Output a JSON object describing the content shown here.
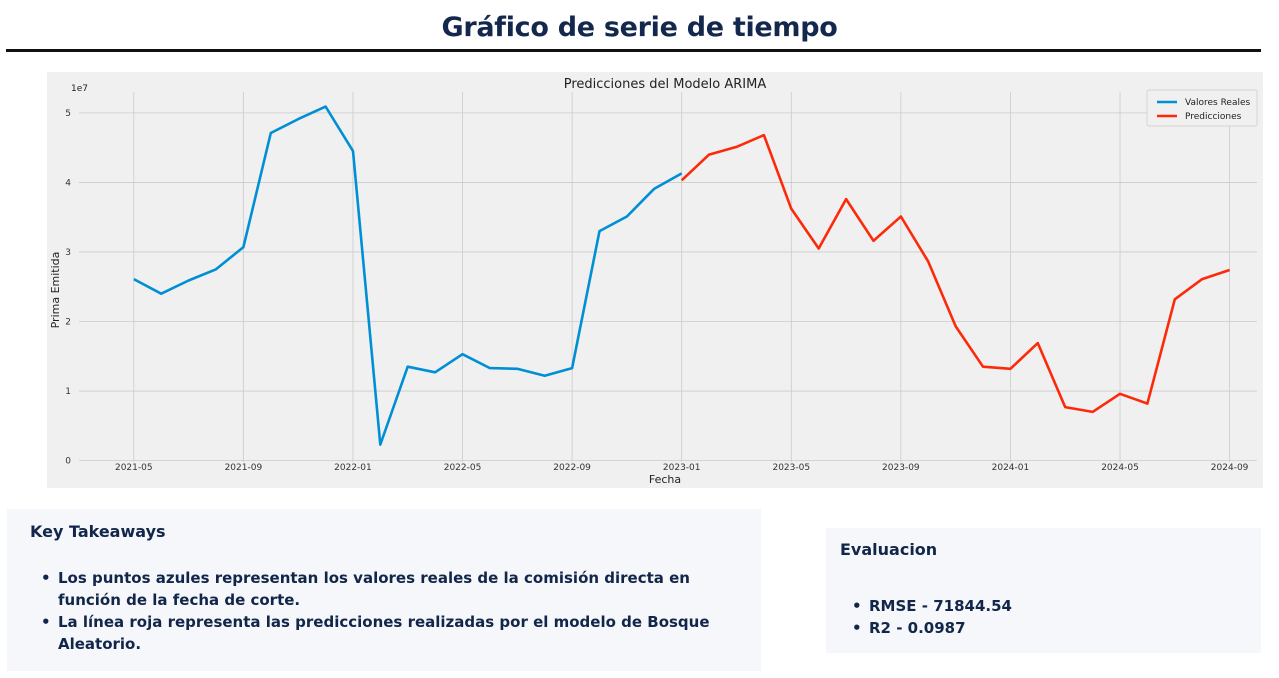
{
  "page": {
    "title": "Gráfico de serie de tiempo"
  },
  "chart_data": {
    "type": "line",
    "title": "Predicciones del Modelo ARIMA",
    "xlabel": "Fecha",
    "ylabel": "Prima Emitida",
    "y_multiplier_label": "1e7",
    "x_tick_labels": [
      "2021-05",
      "2021-09",
      "2022-01",
      "2022-05",
      "2022-09",
      "2023-01",
      "2023-05",
      "2023-09",
      "2024-01",
      "2024-05",
      "2024-09"
    ],
    "y_tick_labels": [
      "0",
      "1",
      "2",
      "3",
      "4",
      "5"
    ],
    "xlim": [
      "2021-03",
      "2024-10"
    ],
    "ylim": [
      -0.02,
      5.3
    ],
    "grid": true,
    "legend_position": "top-right",
    "series": [
      {
        "name": "Valores Reales",
        "color": "#008fd5",
        "x": [
          "2021-05",
          "2021-06",
          "2021-07",
          "2021-08",
          "2021-09",
          "2021-10",
          "2021-11",
          "2021-12",
          "2022-01",
          "2022-02",
          "2022-03",
          "2022-04",
          "2022-05",
          "2022-06",
          "2022-07",
          "2022-08",
          "2022-09",
          "2022-10",
          "2022-11",
          "2022-12",
          "2023-01"
        ],
        "y": [
          2.61,
          2.4,
          2.59,
          2.75,
          3.07,
          4.71,
          4.91,
          5.09,
          4.45,
          0.23,
          1.35,
          1.27,
          1.53,
          1.33,
          1.32,
          1.22,
          1.33,
          3.3,
          3.51,
          3.91,
          4.13
        ]
      },
      {
        "name": "Predicciones",
        "color": "#fc2a0a",
        "x": [
          "2023-01",
          "2023-02",
          "2023-03",
          "2023-04",
          "2023-05",
          "2023-06",
          "2023-07",
          "2023-08",
          "2023-09",
          "2023-10",
          "2023-11",
          "2023-12",
          "2024-01",
          "2024-02",
          "2024-03",
          "2024-04",
          "2024-05",
          "2024-06",
          "2024-07",
          "2024-08",
          "2024-09"
        ],
        "y": [
          4.03,
          4.4,
          4.51,
          4.68,
          3.62,
          3.05,
          3.76,
          3.16,
          3.51,
          2.86,
          1.93,
          1.35,
          1.32,
          1.69,
          0.77,
          0.7,
          0.96,
          0.82,
          2.32,
          2.61,
          2.74
        ]
      }
    ]
  },
  "takeaways": {
    "heading": "Key Takeaways",
    "items": [
      "Los puntos azules representan los valores reales de la comisión directa en función de la fecha de corte.",
      "La línea roja representa las predicciones realizadas por el modelo de Bosque Aleatorio."
    ]
  },
  "evaluacion": {
    "heading": "Evaluacion",
    "items": [
      "RMSE - 71844.54",
      "R2 -  0.0987"
    ]
  }
}
